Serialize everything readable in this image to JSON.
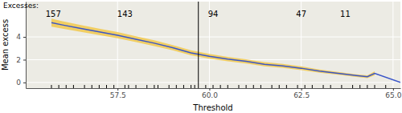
{
  "chart_data": {
    "type": "line",
    "xlabel": "Threshold",
    "ylabel": "Mean excess",
    "x": [
      55.7,
      56,
      56.5,
      57,
      57.5,
      58,
      58.5,
      59,
      59.5,
      60,
      60.5,
      61,
      61.5,
      62,
      62.5,
      63,
      63.5,
      64,
      64.3,
      64.5,
      65.2
    ],
    "values": [
      5.25,
      5.05,
      4.75,
      4.45,
      4.15,
      3.8,
      3.45,
      3.05,
      2.6,
      2.3,
      2.05,
      1.85,
      1.6,
      1.45,
      1.25,
      1.0,
      0.8,
      0.6,
      0.5,
      0.8,
      0.0
    ],
    "color": "#3a55c8",
    "band": {
      "lower": [
        4.9,
        4.72,
        4.45,
        4.17,
        3.88,
        3.54,
        3.2,
        2.82,
        2.38,
        2.09,
        1.85,
        1.66,
        1.42,
        1.28,
        1.09,
        0.86,
        0.67,
        0.48,
        0.38,
        0.62,
        null
      ],
      "upper": [
        5.6,
        5.38,
        5.05,
        4.73,
        4.42,
        4.06,
        3.7,
        3.28,
        2.82,
        2.51,
        2.25,
        2.04,
        1.78,
        1.62,
        1.41,
        1.14,
        0.93,
        0.72,
        0.62,
        0.98,
        null
      ],
      "color": "#f2c94c"
    },
    "vline": 59.7,
    "rug": [
      55.7,
      55.9,
      56.1,
      56.3,
      56.6,
      56.8,
      57.0,
      57.2,
      57.4,
      57.7,
      57.8,
      58.0,
      58.3,
      58.5,
      58.6,
      58.9,
      59.1,
      59.3,
      59.5,
      59.6,
      59.9,
      60.1,
      60.3,
      60.5,
      60.8,
      61.0,
      61.2,
      61.4,
      61.7,
      61.9,
      62.1,
      62.4,
      62.6,
      62.8,
      63.1,
      63.3,
      63.6,
      63.9,
      64.1,
      64.3,
      64.5,
      64.8
    ],
    "excesses": {
      "label": "Excesses:",
      "x": [
        55.75,
        57.7,
        60.1,
        62.5,
        63.7
      ],
      "values": [
        157,
        143,
        94,
        47,
        11
      ]
    },
    "xlim": [
      55,
      65.2
    ],
    "ylim": [
      -0.5,
      7.1
    ],
    "xticks": [
      57.5,
      {
        "value": 60,
        "label": "60.0"
      },
      62.5,
      {
        "value": 65,
        "label": "65.0"
      }
    ],
    "yticks": [
      0,
      2,
      4
    ],
    "grid": true
  }
}
